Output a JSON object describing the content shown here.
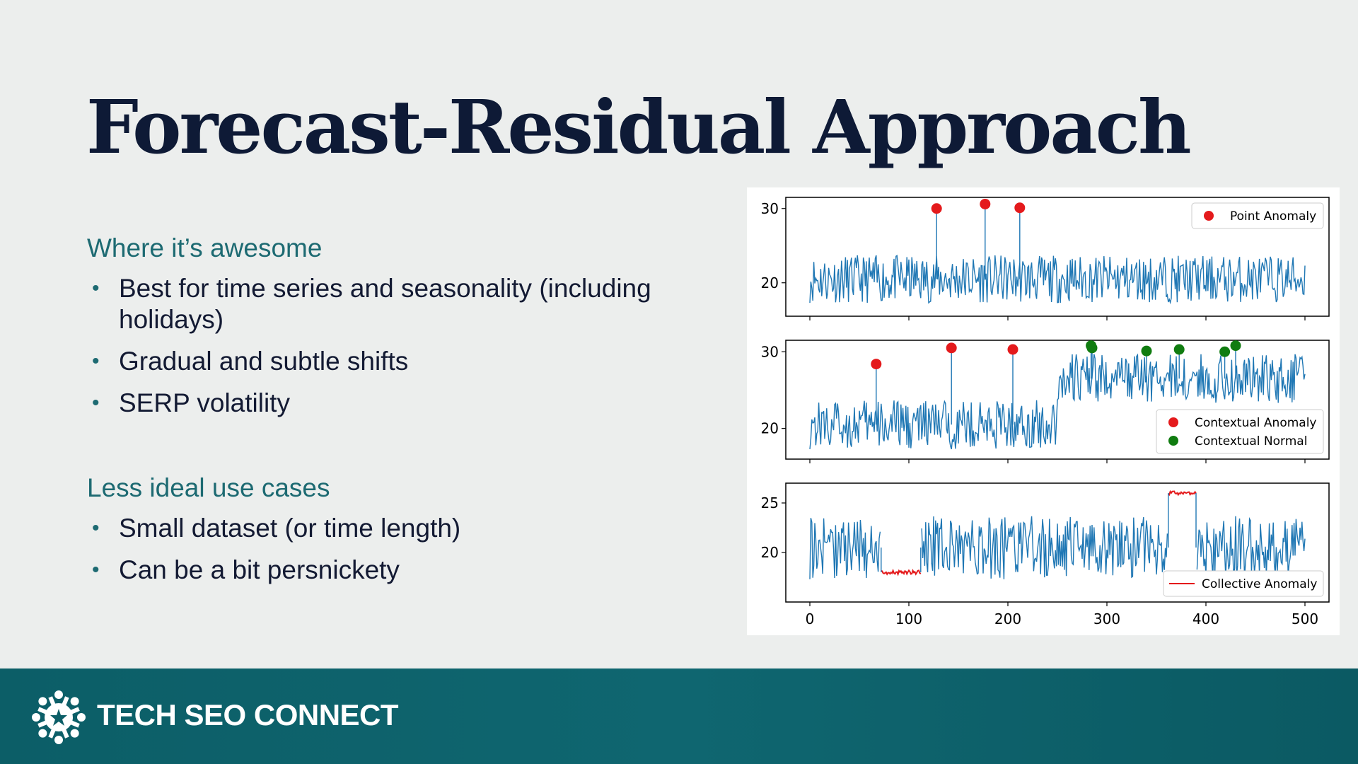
{
  "slide": {
    "title": "Forecast-Residual Approach",
    "sections": [
      {
        "heading": "Where it’s awesome",
        "bullets": [
          "Best for time series and seasonality (including holidays)",
          "Gradual and subtle shifts",
          "SERP volatility"
        ]
      },
      {
        "heading": "Less ideal use cases",
        "bullets": [
          "Small dataset (or time length)",
          "Can be a bit persnickety"
        ]
      }
    ]
  },
  "footer": {
    "brand": "TECH SEO CONNECT",
    "logo_icon": "starburst-logo-icon"
  },
  "colors": {
    "title": "#0e1a36",
    "heading": "#1d6a72",
    "series": "#1f77b4",
    "anomaly_red": "#e41a1c",
    "normal_green": "#107c10",
    "footer_bg": "#0c5e67"
  },
  "chart_data": [
    {
      "type": "line",
      "title": "",
      "xlim": [
        0,
        500
      ],
      "ylim": [
        15.5,
        31.5
      ],
      "yticks": [
        20,
        30
      ],
      "xticks": [
        0,
        100,
        200,
        300,
        400,
        500
      ],
      "show_xtick_labels": false,
      "series": [
        {
          "base": 20.5,
          "amplitude": 3.2,
          "segments": []
        }
      ],
      "points": [
        {
          "name": "Point Anomaly",
          "color": "#e41a1c",
          "x": [
            128,
            177,
            212
          ],
          "y": [
            30.0,
            30.6,
            30.1
          ]
        }
      ],
      "legend": {
        "position": "top-right",
        "entries": [
          {
            "label": "Point Anomaly",
            "marker": "dot",
            "color": "#e41a1c"
          }
        ]
      }
    },
    {
      "type": "line",
      "title": "",
      "xlim": [
        0,
        500
      ],
      "ylim": [
        16,
        31.5
      ],
      "yticks": [
        20,
        30
      ],
      "xticks": [
        0,
        100,
        200,
        300,
        400,
        500
      ],
      "show_xtick_labels": false,
      "series": [
        {
          "base": 20.5,
          "amplitude": 3.2,
          "segments": [
            {
              "from": 250,
              "to": 500,
              "level": 26.5
            }
          ]
        }
      ],
      "points": [
        {
          "name": "Contextual Anomaly",
          "color": "#e41a1c",
          "x": [
            67,
            143,
            205
          ],
          "y": [
            28.4,
            30.5,
            30.3
          ]
        },
        {
          "name": "Contextual Normal",
          "color": "#107c10",
          "x": [
            284,
            285,
            340,
            373,
            419,
            430
          ],
          "y": [
            30.8,
            30.5,
            30.1,
            30.3,
            30.0,
            30.8
          ]
        }
      ],
      "legend": {
        "position": "lower-right",
        "entries": [
          {
            "label": "Contextual Anomaly",
            "marker": "dot",
            "color": "#e41a1c"
          },
          {
            "label": "Contextual Normal",
            "marker": "dot",
            "color": "#107c10"
          }
        ]
      }
    },
    {
      "type": "line",
      "title": "",
      "xlim": [
        0,
        500
      ],
      "ylim": [
        15,
        27
      ],
      "yticks": [
        20,
        25
      ],
      "xticks": [
        0,
        100,
        200,
        300,
        400,
        500
      ],
      "show_xtick_labels": true,
      "series": [
        {
          "base": 20.5,
          "amplitude": 3.2,
          "segments": []
        }
      ],
      "collective": [
        {
          "from": 72,
          "to": 112,
          "level": 18.0,
          "color": "#e41a1c"
        },
        {
          "from": 362,
          "to": 390,
          "level": 26.0,
          "color": "#e41a1c"
        }
      ],
      "legend": {
        "position": "lower-right",
        "entries": [
          {
            "label": "Collective Anomaly",
            "marker": "line",
            "color": "#e41a1c"
          }
        ]
      }
    }
  ]
}
